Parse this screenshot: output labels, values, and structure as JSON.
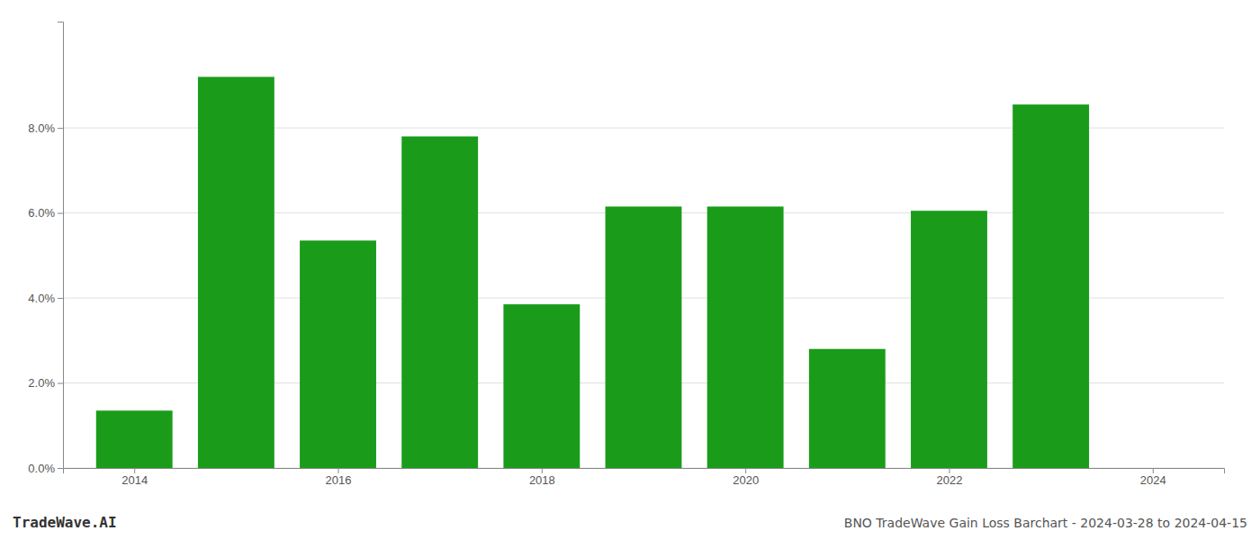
{
  "chart_data": {
    "type": "bar",
    "title": "BNO TradeWave Gain Loss Barchart - 2024-03-28 to 2024-04-15",
    "annotations": [
      "TradeWave.AI"
    ],
    "x": [
      2014,
      2015,
      2016,
      2017,
      2018,
      2019,
      2020,
      2021,
      2022,
      2023
    ],
    "values": [
      0.0135,
      0.092,
      0.0535,
      0.078,
      0.0385,
      0.0615,
      0.0615,
      0.028,
      0.0605,
      0.0855
    ],
    "color": "#1a9c1a",
    "xlim": [
      2013.3,
      2024.7
    ],
    "xticks": [
      2014,
      2016,
      2018,
      2020,
      2022,
      2024
    ],
    "ylim": [
      0,
      0.105
    ],
    "yticks": [
      {
        "value": 0.0,
        "label": "0.0%"
      },
      {
        "value": 0.02,
        "label": "2.0%"
      },
      {
        "value": 0.04,
        "label": "4.0%"
      },
      {
        "value": 0.06,
        "label": "6.0%"
      },
      {
        "value": 0.08,
        "label": "8.0%"
      }
    ],
    "grid": true
  }
}
